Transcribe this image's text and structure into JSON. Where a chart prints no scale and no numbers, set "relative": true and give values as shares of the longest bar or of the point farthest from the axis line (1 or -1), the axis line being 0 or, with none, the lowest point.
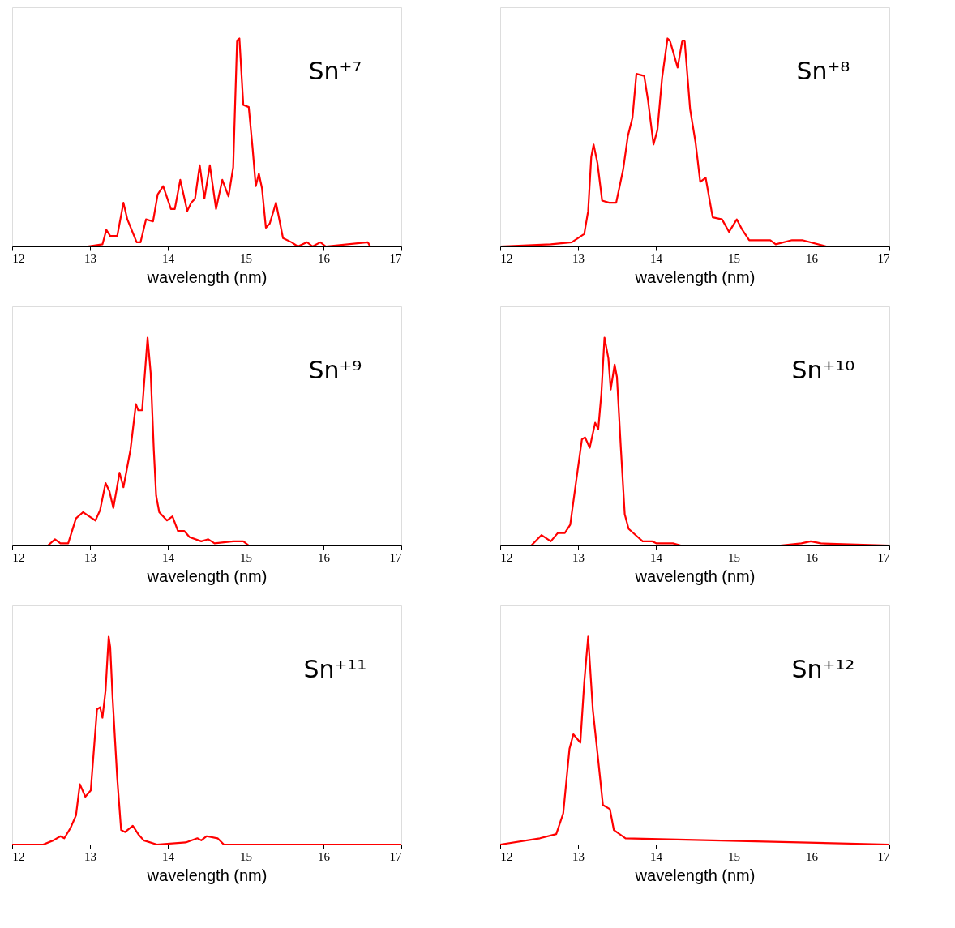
{
  "chart_data": [
    {
      "type": "line",
      "title": "Sn⁺⁷",
      "xlabel": "wavelength (nm)",
      "relative": true,
      "xlim": [
        12,
        17
      ],
      "xticks": [
        12,
        13,
        14,
        15,
        16,
        17
      ],
      "grid": false,
      "marker": "none",
      "line_style": "solid",
      "series": [
        {
          "color": "#ff0000",
          "x": [
            12.0,
            12.97,
            13.16,
            13.21,
            13.26,
            13.35,
            13.43,
            13.48,
            13.6,
            13.65,
            13.72,
            13.81,
            13.87,
            13.94,
            14.04,
            14.09,
            14.16,
            14.25,
            14.3,
            14.35,
            14.41,
            14.47,
            14.54,
            14.62,
            14.7,
            14.78,
            14.84,
            14.89,
            14.92,
            14.97,
            15.04,
            15.09,
            15.13,
            15.17,
            15.21,
            15.26,
            15.31,
            15.39,
            15.48,
            15.59,
            15.67,
            15.79,
            15.86,
            15.96,
            16.03,
            16.57,
            16.6,
            17.0
          ],
          "values": [
            0,
            0,
            0.01,
            0.08,
            0.05,
            0.05,
            0.21,
            0.13,
            0.02,
            0.02,
            0.13,
            0.12,
            0.25,
            0.29,
            0.18,
            0.18,
            0.32,
            0.17,
            0.21,
            0.23,
            0.39,
            0.23,
            0.39,
            0.18,
            0.32,
            0.24,
            0.38,
            0.99,
            1.0,
            0.68,
            0.67,
            0.47,
            0.29,
            0.35,
            0.28,
            0.09,
            0.11,
            0.21,
            0.04,
            0.02,
            0,
            0.02,
            0,
            0.02,
            0,
            0.02,
            0,
            0
          ]
        }
      ]
    },
    {
      "type": "line",
      "title": "Sn⁺⁸",
      "xlabel": "wavelength (nm)",
      "relative": true,
      "xlim": [
        12,
        17
      ],
      "xticks": [
        12,
        13,
        14,
        15,
        16,
        17
      ],
      "grid": false,
      "marker": "none",
      "line_style": "solid",
      "series": [
        {
          "color": "#ff0000",
          "x": [
            12.0,
            12.65,
            12.92,
            13.08,
            13.13,
            13.17,
            13.2,
            13.25,
            13.31,
            13.4,
            13.49,
            13.58,
            13.64,
            13.7,
            13.75,
            13.85,
            13.9,
            13.97,
            14.02,
            14.08,
            14.15,
            14.18,
            14.28,
            14.34,
            14.37,
            14.44,
            14.51,
            14.57,
            14.64,
            14.73,
            14.85,
            14.94,
            15.04,
            15.11,
            15.2,
            15.47,
            15.54,
            15.75,
            15.88,
            16.19,
            17.0
          ],
          "values": [
            0,
            0.01,
            0.02,
            0.06,
            0.17,
            0.43,
            0.49,
            0.4,
            0.22,
            0.21,
            0.21,
            0.37,
            0.53,
            0.62,
            0.83,
            0.82,
            0.7,
            0.49,
            0.56,
            0.81,
            1.0,
            0.99,
            0.86,
            0.99,
            0.99,
            0.66,
            0.5,
            0.31,
            0.33,
            0.14,
            0.13,
            0.07,
            0.13,
            0.08,
            0.03,
            0.03,
            0.01,
            0.03,
            0.03,
            0,
            0
          ]
        }
      ]
    },
    {
      "type": "line",
      "title": "Sn⁺⁹",
      "xlabel": "wavelength (nm)",
      "relative": true,
      "xlim": [
        12,
        17
      ],
      "xticks": [
        12,
        13,
        14,
        15,
        16,
        17
      ],
      "grid": false,
      "marker": "none",
      "line_style": "solid",
      "series": [
        {
          "color": "#ff0000",
          "x": [
            12.0,
            12.35,
            12.46,
            12.55,
            12.62,
            12.72,
            12.82,
            12.91,
            12.99,
            13.07,
            13.13,
            13.2,
            13.25,
            13.3,
            13.38,
            13.43,
            13.52,
            13.59,
            13.62,
            13.67,
            13.74,
            13.78,
            13.82,
            13.85,
            13.89,
            13.99,
            14.06,
            14.13,
            14.21,
            14.28,
            14.43,
            14.52,
            14.6,
            14.84,
            14.97,
            15.04,
            17.0
          ],
          "values": [
            0,
            0,
            0,
            0.03,
            0.01,
            0.01,
            0.13,
            0.16,
            0.14,
            0.12,
            0.17,
            0.3,
            0.26,
            0.18,
            0.35,
            0.28,
            0.46,
            0.68,
            0.65,
            0.65,
            1.0,
            0.83,
            0.46,
            0.24,
            0.16,
            0.12,
            0.14,
            0.07,
            0.07,
            0.04,
            0.02,
            0.03,
            0.01,
            0.02,
            0.02,
            0,
            0
          ]
        }
      ]
    },
    {
      "type": "line",
      "title": "Sn⁺¹⁰",
      "xlabel": "wavelength (nm)",
      "relative": true,
      "xlim": [
        12,
        17
      ],
      "xticks": [
        12,
        13,
        14,
        15,
        16,
        17
      ],
      "grid": false,
      "marker": "none",
      "line_style": "solid",
      "series": [
        {
          "color": "#ff0000",
          "x": [
            12.0,
            12.4,
            12.53,
            12.65,
            12.74,
            12.83,
            12.9,
            12.98,
            13.05,
            13.09,
            13.15,
            13.22,
            13.26,
            13.3,
            13.34,
            13.39,
            13.42,
            13.47,
            13.5,
            13.55,
            13.6,
            13.65,
            13.77,
            13.83,
            13.95,
            14.01,
            14.22,
            14.32,
            15.6,
            15.87,
            15.99,
            16.12,
            17.0
          ],
          "values": [
            0,
            0,
            0.05,
            0.02,
            0.06,
            0.06,
            0.1,
            0.32,
            0.51,
            0.52,
            0.47,
            0.59,
            0.56,
            0.73,
            1.0,
            0.9,
            0.75,
            0.87,
            0.81,
            0.47,
            0.15,
            0.08,
            0.04,
            0.02,
            0.02,
            0.01,
            0.01,
            0,
            0,
            0.01,
            0.02,
            0.01,
            0
          ]
        }
      ]
    },
    {
      "type": "line",
      "title": "Sn⁺¹¹",
      "xlabel": "wavelength (nm)",
      "relative": true,
      "xlim": [
        12,
        17
      ],
      "xticks": [
        12,
        13,
        14,
        15,
        16,
        17
      ],
      "grid": false,
      "marker": "none",
      "line_style": "solid",
      "series": [
        {
          "color": "#ff0000",
          "x": [
            12.0,
            12.4,
            12.53,
            12.62,
            12.67,
            12.75,
            12.82,
            12.87,
            12.94,
            13.01,
            13.09,
            13.13,
            13.16,
            13.2,
            13.24,
            13.26,
            13.29,
            13.35,
            13.4,
            13.45,
            13.55,
            13.62,
            13.69,
            13.86,
            14.23,
            14.38,
            14.43,
            14.5,
            14.64,
            14.72,
            17.0
          ],
          "values": [
            0,
            0,
            0.02,
            0.04,
            0.03,
            0.08,
            0.14,
            0.29,
            0.23,
            0.26,
            0.65,
            0.66,
            0.61,
            0.74,
            1.0,
            0.95,
            0.71,
            0.32,
            0.07,
            0.06,
            0.09,
            0.05,
            0.02,
            0,
            0.01,
            0.03,
            0.02,
            0.04,
            0.03,
            0,
            0
          ]
        }
      ]
    },
    {
      "type": "line",
      "title": "Sn⁺¹²",
      "xlabel": "wavelength (nm)",
      "relative": true,
      "xlim": [
        12,
        17
      ],
      "xticks": [
        12,
        13,
        14,
        15,
        16,
        17
      ],
      "grid": false,
      "marker": "none",
      "line_style": "solid",
      "series": [
        {
          "color": "#ff0000",
          "x": [
            12.0,
            12.51,
            12.72,
            12.81,
            12.89,
            12.94,
            13.03,
            13.08,
            13.13,
            13.19,
            13.25,
            13.32,
            13.41,
            13.46,
            13.61,
            17.0
          ],
          "values": [
            0,
            0.03,
            0.05,
            0.15,
            0.46,
            0.53,
            0.49,
            0.78,
            1.0,
            0.65,
            0.44,
            0.19,
            0.17,
            0.07,
            0.03,
            0
          ]
        }
      ]
    }
  ]
}
